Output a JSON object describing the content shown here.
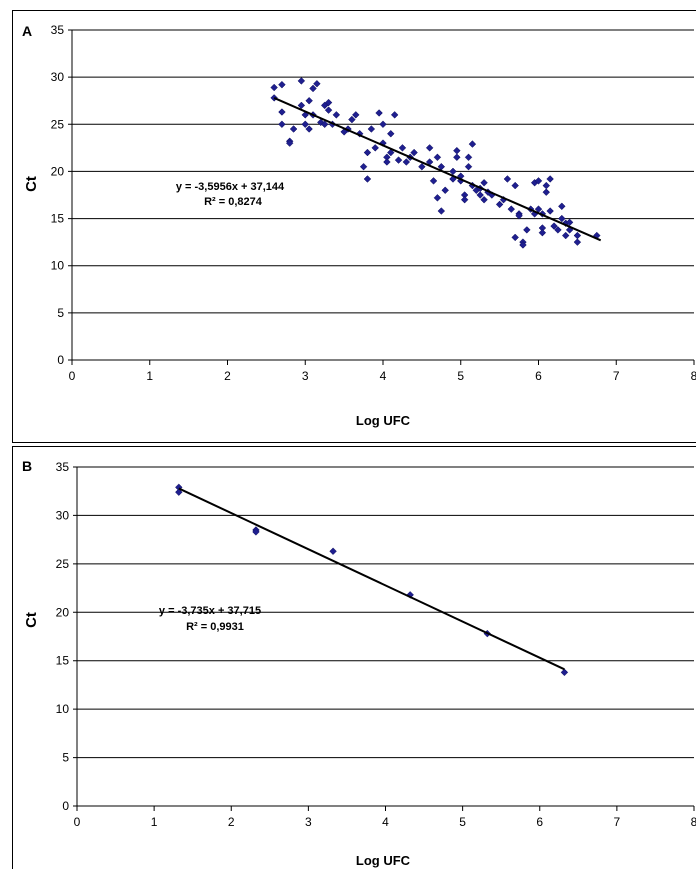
{
  "chart_data": [
    {
      "panel_label": "A",
      "type": "scatter",
      "xlabel": "Log UFC",
      "ylabel": "Ct",
      "xlim": [
        0,
        8
      ],
      "ylim": [
        0,
        35
      ],
      "x_ticks": [
        "0",
        "1",
        "2",
        "3",
        "4",
        "5",
        "6",
        "7",
        "8"
      ],
      "y_ticks": [
        "0",
        "5",
        "10",
        "15",
        "20",
        "25",
        "30",
        "35"
      ],
      "grid": "horizontal",
      "marker_color": "#1f1f8f",
      "trendline": {
        "slope": -3.5956,
        "intercept": 37.144,
        "x_range": [
          2.6,
          6.8
        ]
      },
      "equation": "y = -3,5956x + 37,144",
      "r_squared": "R² = 0,8274",
      "points": [
        [
          2.6,
          28.9
        ],
        [
          2.6,
          27.8
        ],
        [
          2.7,
          29.2
        ],
        [
          2.7,
          26.3
        ],
        [
          2.7,
          25.0
        ],
        [
          2.8,
          23.2
        ],
        [
          2.8,
          23.0
        ],
        [
          2.85,
          24.5
        ],
        [
          2.95,
          29.6
        ],
        [
          2.95,
          27.0
        ],
        [
          3.0,
          26.0
        ],
        [
          3.0,
          25.0
        ],
        [
          3.05,
          27.5
        ],
        [
          3.05,
          24.5
        ],
        [
          3.1,
          28.8
        ],
        [
          3.1,
          26.0
        ],
        [
          3.15,
          29.3
        ],
        [
          3.2,
          25.2
        ],
        [
          3.25,
          27.0
        ],
        [
          3.25,
          25.0
        ],
        [
          3.3,
          27.3
        ],
        [
          3.3,
          26.5
        ],
        [
          3.35,
          25.0
        ],
        [
          3.4,
          26.0
        ],
        [
          3.5,
          24.2
        ],
        [
          3.55,
          24.5
        ],
        [
          3.6,
          25.5
        ],
        [
          3.65,
          26.0
        ],
        [
          3.7,
          24.0
        ],
        [
          3.75,
          20.5
        ],
        [
          3.8,
          22.0
        ],
        [
          3.8,
          19.2
        ],
        [
          3.85,
          24.5
        ],
        [
          3.9,
          22.5
        ],
        [
          3.95,
          26.2
        ],
        [
          4.0,
          25.0
        ],
        [
          4.0,
          23.0
        ],
        [
          4.05,
          21.5
        ],
        [
          4.05,
          21.0
        ],
        [
          4.1,
          24.0
        ],
        [
          4.1,
          22.0
        ],
        [
          4.15,
          26.0
        ],
        [
          4.2,
          21.2
        ],
        [
          4.25,
          22.5
        ],
        [
          4.3,
          21.0
        ],
        [
          4.35,
          21.5
        ],
        [
          4.4,
          22.0
        ],
        [
          4.5,
          20.5
        ],
        [
          4.6,
          21.0
        ],
        [
          4.6,
          22.5
        ],
        [
          4.65,
          19.0
        ],
        [
          4.7,
          17.2
        ],
        [
          4.7,
          21.5
        ],
        [
          4.75,
          20.5
        ],
        [
          4.75,
          15.8
        ],
        [
          4.8,
          18.0
        ],
        [
          4.9,
          20.0
        ],
        [
          4.9,
          19.2
        ],
        [
          4.95,
          22.2
        ],
        [
          4.95,
          21.5
        ],
        [
          5.0,
          19.5
        ],
        [
          5.0,
          19.0
        ],
        [
          5.05,
          17.5
        ],
        [
          5.05,
          17.0
        ],
        [
          5.1,
          21.5
        ],
        [
          5.1,
          20.5
        ],
        [
          5.15,
          22.9
        ],
        [
          5.15,
          18.5
        ],
        [
          5.2,
          18.0
        ],
        [
          5.25,
          18.2
        ],
        [
          5.25,
          17.5
        ],
        [
          5.3,
          18.8
        ],
        [
          5.3,
          17.0
        ],
        [
          5.35,
          17.8
        ],
        [
          5.4,
          17.5
        ],
        [
          5.5,
          16.5
        ],
        [
          5.55,
          17.0
        ],
        [
          5.6,
          19.2
        ],
        [
          5.65,
          16.0
        ],
        [
          5.7,
          18.5
        ],
        [
          5.7,
          13.0
        ],
        [
          5.75,
          15.5
        ],
        [
          5.75,
          15.3
        ],
        [
          5.8,
          12.5
        ],
        [
          5.8,
          12.2
        ],
        [
          5.85,
          13.8
        ],
        [
          5.9,
          16.0
        ],
        [
          5.95,
          18.8
        ],
        [
          5.95,
          15.5
        ],
        [
          6.0,
          19.0
        ],
        [
          6.0,
          16.0
        ],
        [
          6.05,
          15.5
        ],
        [
          6.05,
          14.0
        ],
        [
          6.05,
          13.5
        ],
        [
          6.1,
          18.5
        ],
        [
          6.1,
          17.8
        ],
        [
          6.15,
          19.2
        ],
        [
          6.15,
          15.8
        ],
        [
          6.2,
          14.2
        ],
        [
          6.25,
          13.8
        ],
        [
          6.3,
          16.3
        ],
        [
          6.3,
          15.0
        ],
        [
          6.35,
          14.5
        ],
        [
          6.35,
          13.2
        ],
        [
          6.4,
          14.6
        ],
        [
          6.4,
          13.8
        ],
        [
          6.5,
          13.2
        ],
        [
          6.5,
          12.5
        ],
        [
          6.75,
          13.2
        ]
      ]
    },
    {
      "panel_label": "B",
      "type": "scatter",
      "xlabel": "Log UFC",
      "ylabel": "Ct",
      "xlim": [
        0,
        8
      ],
      "ylim": [
        0,
        35
      ],
      "x_ticks": [
        "0",
        "1",
        "2",
        "3",
        "4",
        "5",
        "6",
        "7",
        "8"
      ],
      "y_ticks": [
        "0",
        "5",
        "10",
        "15",
        "20",
        "25",
        "30",
        "35"
      ],
      "grid": "horizontal",
      "marker_color": "#1f1f8f",
      "trendline": {
        "slope": -3.735,
        "intercept": 37.715,
        "x_range": [
          1.32,
          6.32
        ]
      },
      "equation": "y = -3,735x + 37,715",
      "r_squared": "R² = 0,9931",
      "points": [
        [
          1.32,
          32.9
        ],
        [
          1.32,
          32.4
        ],
        [
          2.32,
          28.5
        ],
        [
          2.32,
          28.3
        ],
        [
          3.32,
          26.3
        ],
        [
          4.32,
          21.8
        ],
        [
          5.32,
          17.8
        ],
        [
          6.32,
          13.8
        ]
      ]
    }
  ]
}
